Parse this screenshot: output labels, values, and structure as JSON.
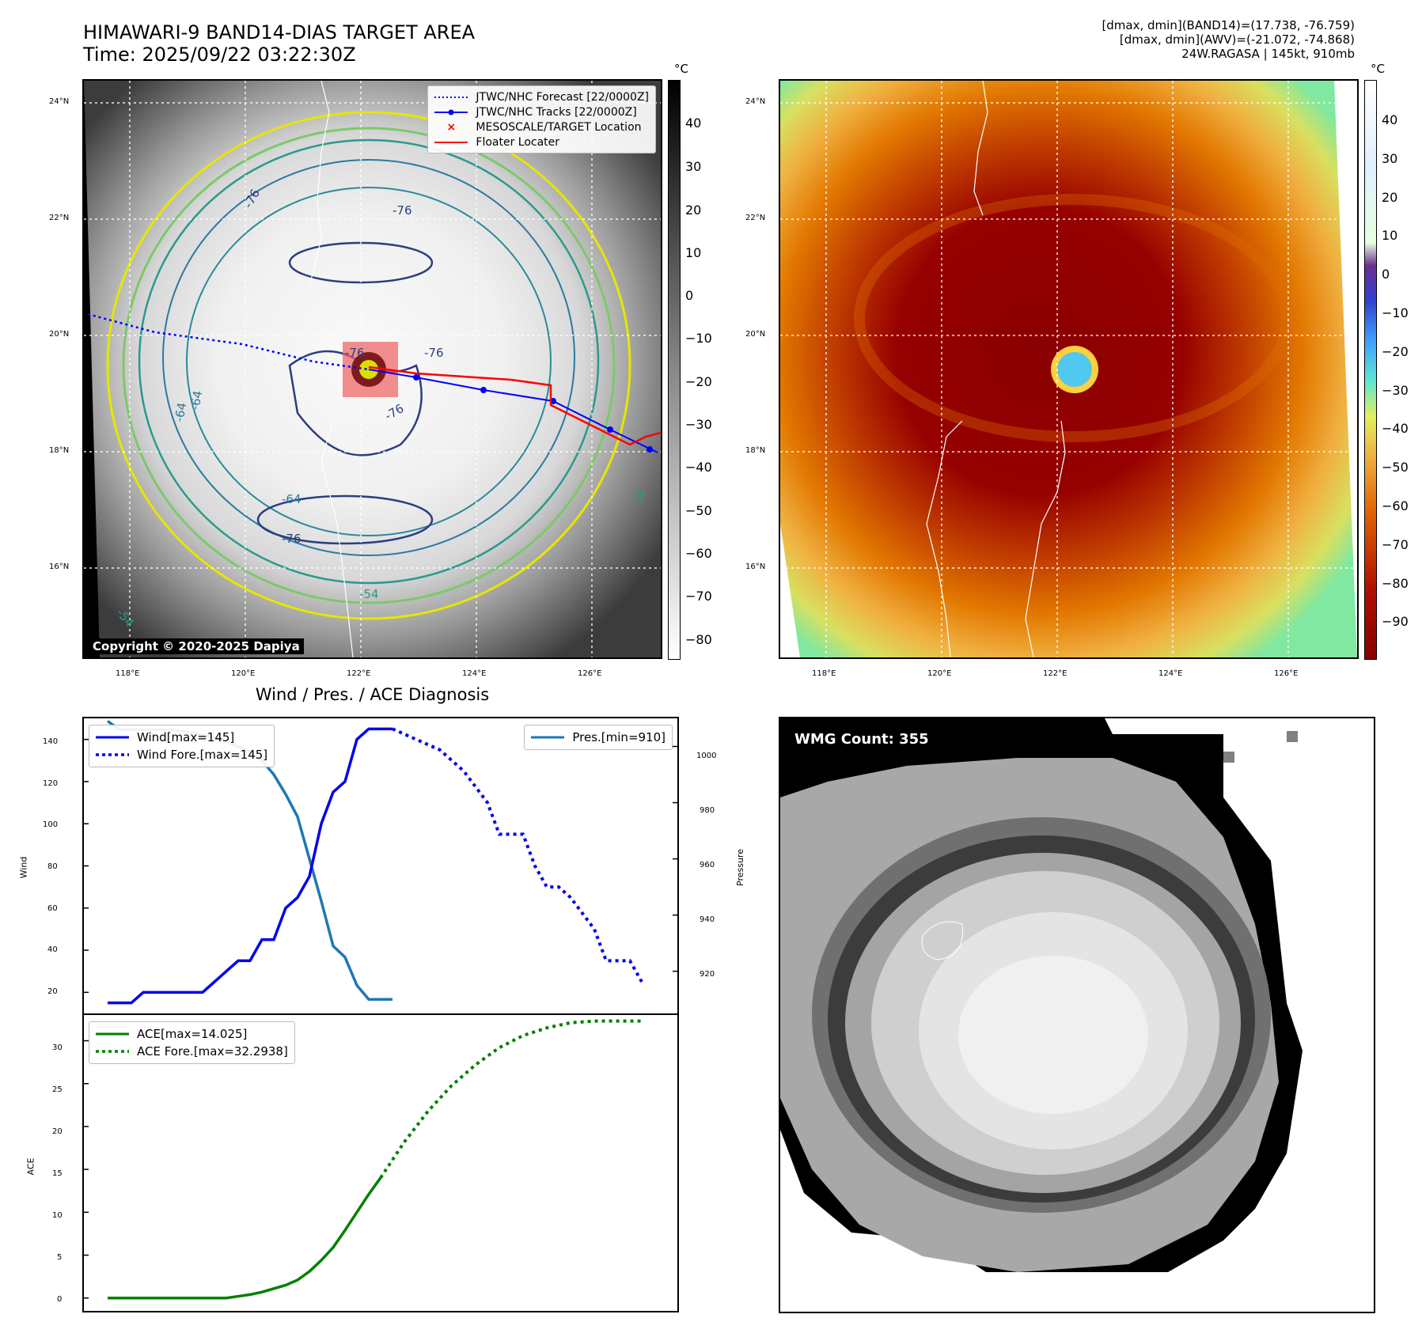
{
  "header": {
    "title_line1": "HIMAWARI-9 BAND14-DIAS TARGET AREA",
    "title_line2": "Time: 2025/09/22 03:22:30Z",
    "info_line1": "[dmax, dmin](BAND14)=(17.738, -76.759)",
    "info_line2": "[dmax, dmin](AWV)=(-21.072, -74.868)",
    "info_line3": "24W.RAGASA | 145kt, 910mb"
  },
  "map_axes": {
    "lat_labels": [
      "24°N",
      "22°N",
      "20°N",
      "18°N",
      "16°N"
    ],
    "lon_labels": [
      "118°E",
      "120°E",
      "122°E",
      "124°E",
      "126°E"
    ]
  },
  "ir_panel": {
    "legend": {
      "forecast": "JTWC/NHC Forecast [22/0000Z]",
      "tracks": "JTWC/NHC Tracks [22/0000Z]",
      "target": "MESOSCALE/TARGET Location",
      "floater": "Floater Locater"
    },
    "contour_labels": [
      "-76",
      "-76",
      "-76",
      "-64",
      "-64",
      "-64",
      "-76",
      "-54",
      "-54",
      "-54",
      "-76",
      "-76"
    ],
    "copyright": "Copyright © 2020-2025 Dapiya",
    "colorbar_unit": "°C",
    "colorbar_ticks": [
      "40",
      "30",
      "20",
      "10",
      "0",
      "−10",
      "−20",
      "−30",
      "−40",
      "−50",
      "−60",
      "−70",
      "−80"
    ],
    "colors": {
      "forecast": "#0000ff",
      "tracks": "#0000ff",
      "target": "#ff0000",
      "floater": "#ff0000"
    }
  },
  "color_panel": {
    "colorbar_unit": "°C",
    "colorbar_ticks": [
      "40",
      "30",
      "20",
      "10",
      "0",
      "−10",
      "−20",
      "−30",
      "−40",
      "−50",
      "−60",
      "−70",
      "−80",
      "−90"
    ]
  },
  "diagnosis": {
    "title": "Wind / Pres. / ACE Diagnosis",
    "wind_ylabel": "Wind",
    "pres_ylabel": "Pressure",
    "ace_ylabel": "ACE",
    "wind_ticks": [
      "140",
      "120",
      "100",
      "80",
      "60",
      "40",
      "20"
    ],
    "pres_ticks": [
      "1000",
      "980",
      "960",
      "940",
      "920"
    ],
    "ace_ticks": [
      "30",
      "25",
      "20",
      "15",
      "10",
      "5",
      "0"
    ],
    "legend_wind": "Wind[max=145]",
    "legend_wind_fore": "Wind Fore.[max=145]",
    "legend_pres": "Pres.[min=910]",
    "legend_ace": "ACE[max=14.025]",
    "legend_ace_fore": "ACE Fore.[max=32.2938]"
  },
  "wmg_panel": {
    "label": "WMG Count: 355"
  },
  "chart_data": [
    {
      "type": "line",
      "title": "Wind / Pres. / ACE Diagnosis",
      "ylabel": "Wind",
      "ylim": [
        10,
        150
      ],
      "x": [
        0,
        1,
        2,
        3,
        4,
        5,
        6,
        7,
        8,
        9,
        10,
        11,
        12,
        13,
        14,
        15,
        16,
        17,
        18,
        19,
        20,
        21,
        22,
        23,
        24,
        25,
        26,
        27,
        28,
        29,
        30,
        31,
        32,
        33,
        34,
        35,
        36,
        37,
        38,
        39,
        40,
        41,
        42,
        43,
        44,
        45,
        46,
        47,
        48,
        49,
        50
      ],
      "series": [
        {
          "name": "Wind[max=145]",
          "color": "#0000ee",
          "points": [
            [
              0,
              15
            ],
            [
              2,
              15
            ],
            [
              3,
              20
            ],
            [
              5,
              20
            ],
            [
              7,
              20
            ],
            [
              8,
              20
            ],
            [
              9,
              25
            ],
            [
              10,
              30
            ],
            [
              11,
              35
            ],
            [
              12,
              35
            ],
            [
              13,
              45
            ],
            [
              14,
              45
            ],
            [
              15,
              60
            ],
            [
              16,
              65
            ],
            [
              17,
              75
            ],
            [
              18,
              100
            ],
            [
              19,
              115
            ],
            [
              20,
              120
            ],
            [
              21,
              140
            ],
            [
              22,
              145
            ],
            [
              24,
              145
            ]
          ]
        },
        {
          "name": "Wind Fore.[max=145]",
          "color": "#0000ee",
          "dashed": true,
          "points": [
            [
              24,
              145
            ],
            [
              26,
              140
            ],
            [
              28,
              135
            ],
            [
              30,
              125
            ],
            [
              32,
              110
            ],
            [
              33,
              95
            ],
            [
              35,
              95
            ],
            [
              36,
              80
            ],
            [
              37,
              70
            ],
            [
              38,
              70
            ],
            [
              39,
              65
            ],
            [
              41,
              50
            ],
            [
              42,
              35
            ],
            [
              44,
              35
            ],
            [
              45,
              25
            ]
          ]
        }
      ]
    },
    {
      "type": "line",
      "ylabel": "Pressure",
      "ylim": [
        905,
        1010
      ],
      "series": [
        {
          "name": "Pres.[min=910]",
          "color": "#1f77b4",
          "points": [
            [
              0,
              1009
            ],
            [
              1,
              1006
            ],
            [
              3,
              1006
            ],
            [
              5,
              1006
            ],
            [
              7,
              1005
            ],
            [
              9,
              1003
            ],
            [
              11,
              1000
            ],
            [
              12,
              998
            ],
            [
              13,
              995
            ],
            [
              14,
              990
            ],
            [
              15,
              983
            ],
            [
              16,
              975
            ],
            [
              17,
              960
            ],
            [
              18,
              945
            ],
            [
              19,
              929
            ],
            [
              20,
              925
            ],
            [
              21,
              915
            ],
            [
              22,
              910
            ],
            [
              24,
              910
            ]
          ]
        }
      ]
    },
    {
      "type": "line",
      "ylabel": "ACE",
      "ylim": [
        -1.5,
        33
      ],
      "series": [
        {
          "name": "ACE[max=14.025]",
          "color": "#008000",
          "points": [
            [
              0,
              0
            ],
            [
              2,
              0
            ],
            [
              4,
              0
            ],
            [
              6,
              0
            ],
            [
              8,
              0
            ],
            [
              10,
              0
            ],
            [
              11,
              0.2
            ],
            [
              12,
              0.4
            ],
            [
              13,
              0.7
            ],
            [
              14,
              1.1
            ],
            [
              15,
              1.5
            ],
            [
              16,
              2.1
            ],
            [
              17,
              3.1
            ],
            [
              18,
              4.4
            ],
            [
              19,
              5.9
            ],
            [
              20,
              7.9
            ],
            [
              21,
              10.0
            ],
            [
              22,
              12.1
            ],
            [
              23,
              14.025
            ]
          ]
        },
        {
          "name": "ACE Fore.[max=32.2938]",
          "color": "#008000",
          "dashed": true,
          "points": [
            [
              23,
              14.025
            ],
            [
              25,
              18.2
            ],
            [
              27,
              21.8
            ],
            [
              29,
              24.8
            ],
            [
              31,
              27.2
            ],
            [
              33,
              29.2
            ],
            [
              35,
              30.6
            ],
            [
              37,
              31.5
            ],
            [
              39,
              32.1
            ],
            [
              41,
              32.2938
            ],
            [
              45,
              32.2938
            ]
          ]
        }
      ]
    }
  ]
}
